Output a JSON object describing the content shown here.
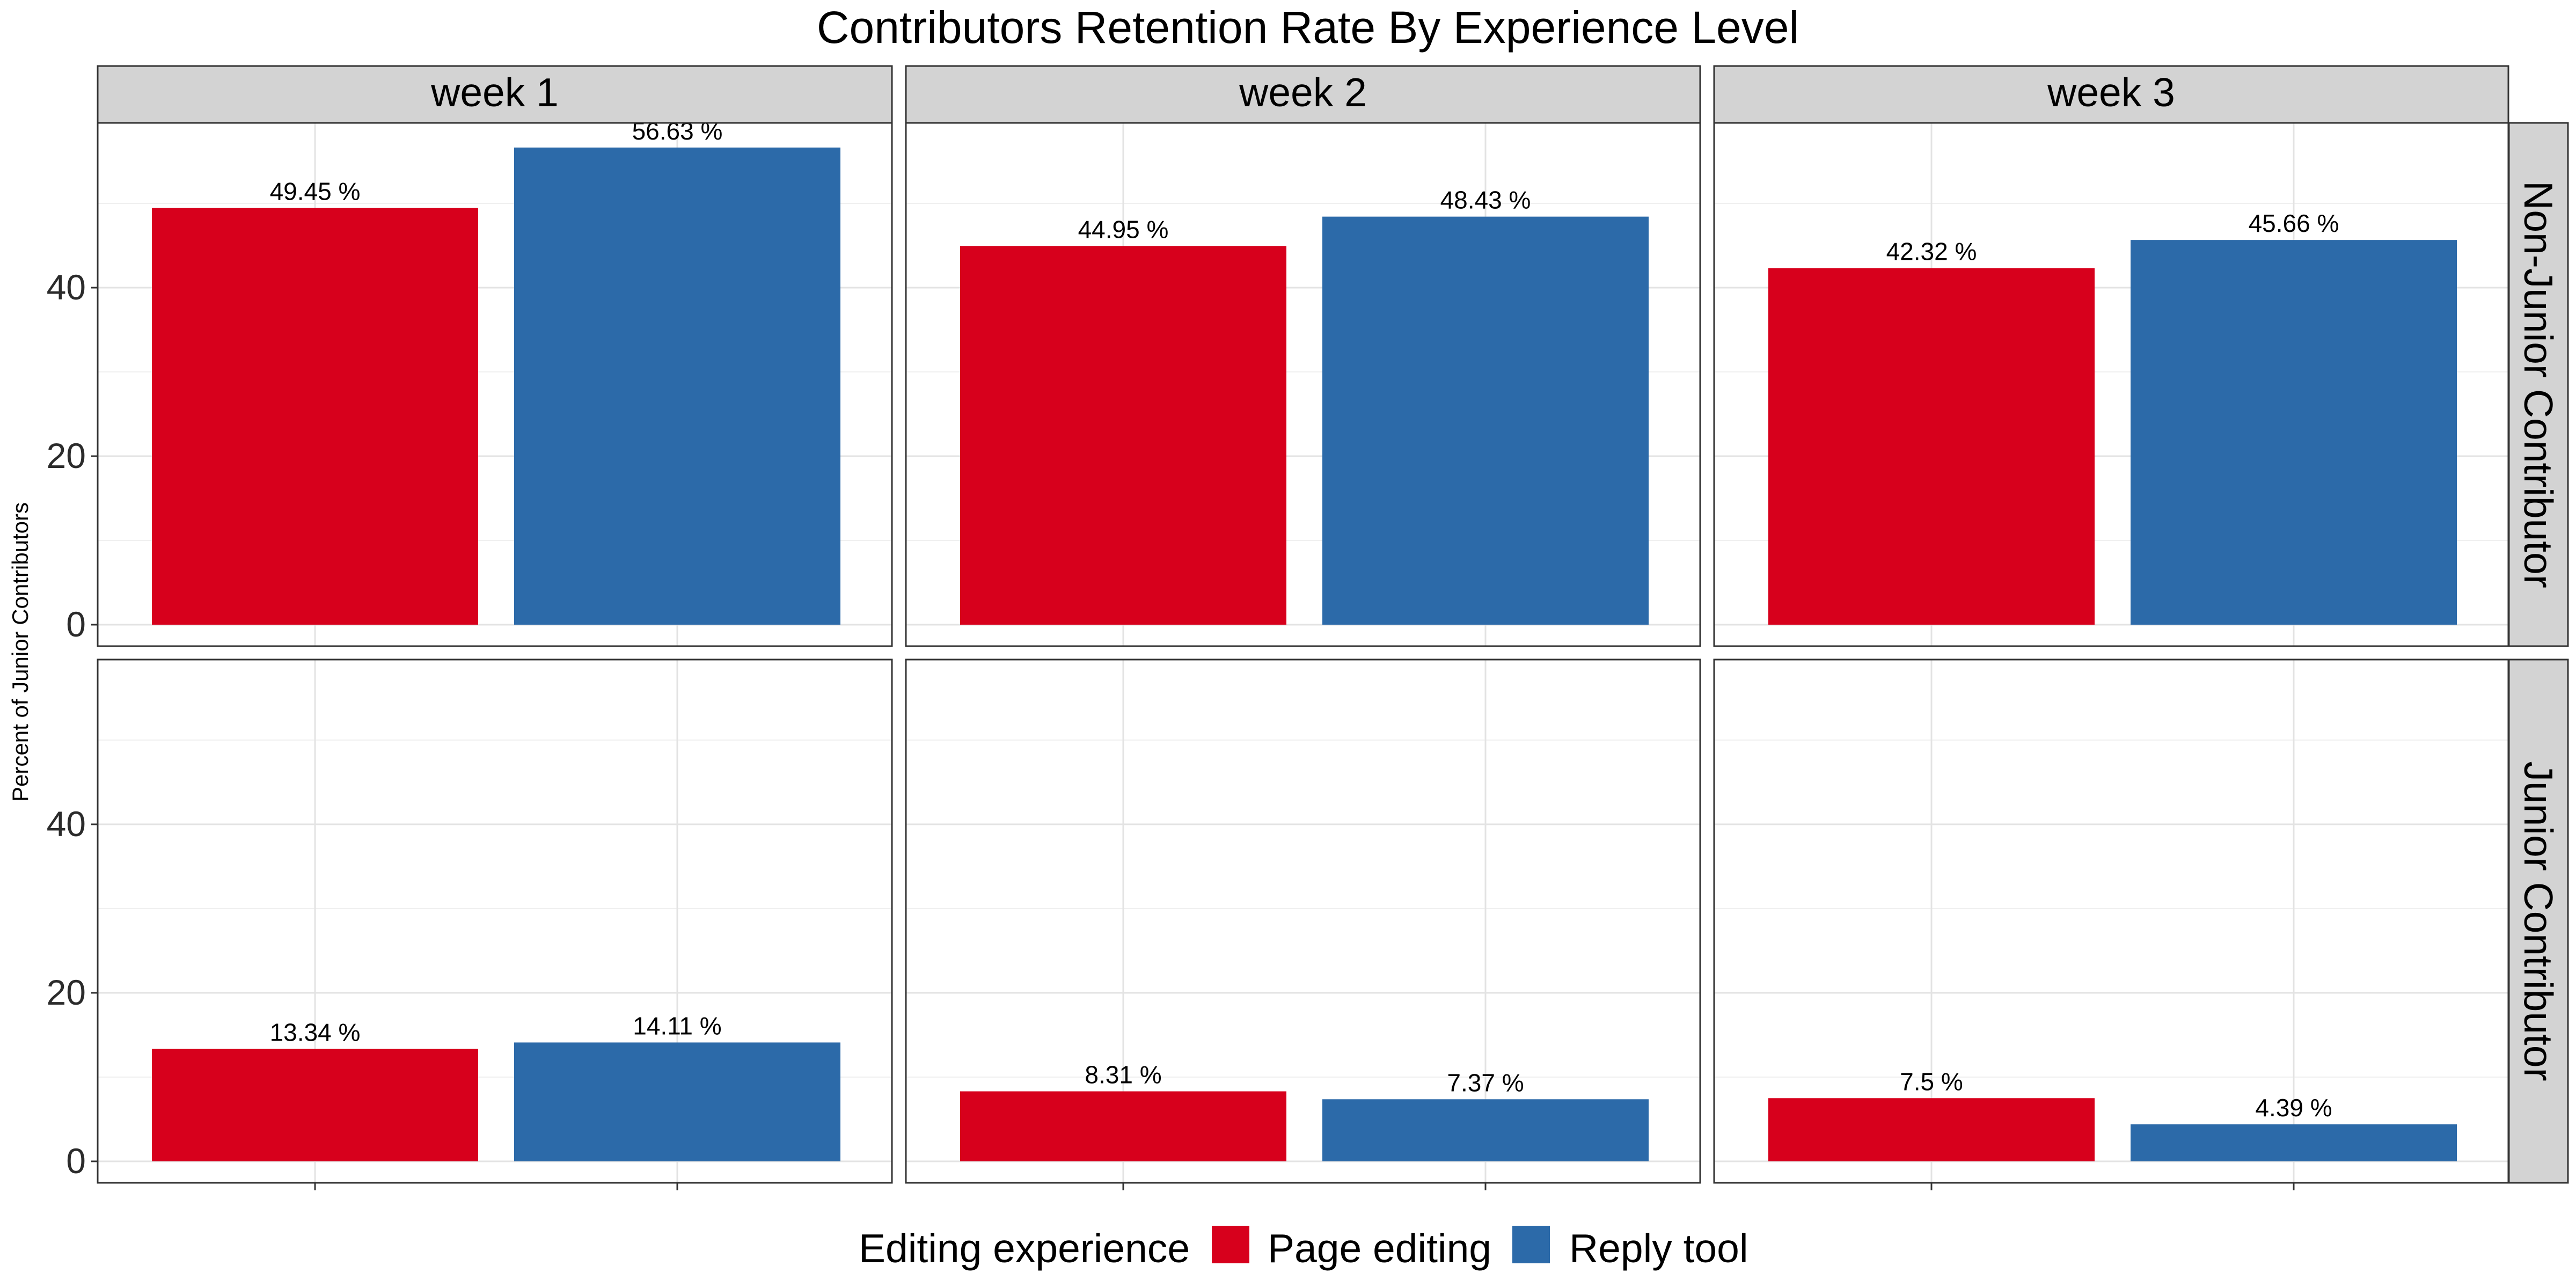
{
  "chart_data": {
    "type": "bar",
    "title": "Contributors Retention Rate By Experience Level",
    "ylabel": "Percent of Junior Contributors",
    "xlabel": "",
    "ylim": [
      0,
      59
    ],
    "yticks": [
      0,
      20,
      40
    ],
    "columns": [
      "week 1",
      "week 2",
      "week 3"
    ],
    "rows": [
      "Non-Junior Contributor",
      "Junior Contributor"
    ],
    "categories": [
      "Page editing",
      "Reply tool"
    ],
    "legend": {
      "title": "Editing experience",
      "position": "bottom",
      "items": [
        {
          "name": "Page editing",
          "color": "#d7001c"
        },
        {
          "name": "Reply tool",
          "color": "#2c6aa9"
        }
      ]
    },
    "panels": [
      {
        "row": "Non-Junior Contributor",
        "column": "week 1",
        "values": [
          49.45,
          56.63
        ],
        "labels": [
          "49.45 %",
          "56.63 %"
        ]
      },
      {
        "row": "Non-Junior Contributor",
        "column": "week 2",
        "values": [
          44.95,
          48.43
        ],
        "labels": [
          "44.95 %",
          "48.43 %"
        ]
      },
      {
        "row": "Non-Junior Contributor",
        "column": "week 3",
        "values": [
          42.32,
          45.66
        ],
        "labels": [
          "42.32 %",
          "45.66 %"
        ]
      },
      {
        "row": "Junior Contributor",
        "column": "week 1",
        "values": [
          13.34,
          14.11
        ],
        "labels": [
          "13.34 %",
          "14.11 %"
        ]
      },
      {
        "row": "Junior Contributor",
        "column": "week 2",
        "values": [
          8.31,
          7.37
        ],
        "labels": [
          "8.31 %",
          "7.37 %"
        ]
      },
      {
        "row": "Junior Contributor",
        "column": "week 3",
        "values": [
          7.5,
          4.39
        ],
        "labels": [
          "7.5 %",
          "4.39 %"
        ]
      }
    ],
    "grid": true,
    "strip_color": "#d3d3d3",
    "panel_border_color": "#333333"
  }
}
